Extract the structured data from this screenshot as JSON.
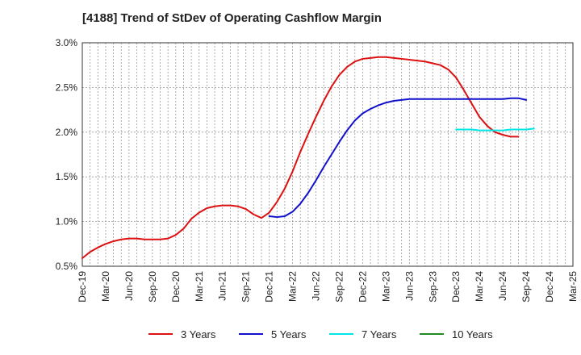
{
  "chart_data": {
    "type": "line",
    "title": "[4188]  Trend of StDev of Operating Cashflow Margin",
    "xlabel": "",
    "ylabel": "",
    "ylim": [
      0.5,
      3.0
    ],
    "y_ticks": [
      "0.5%",
      "1.0%",
      "1.5%",
      "2.0%",
      "2.5%",
      "3.0%"
    ],
    "y_tick_values": [
      0.5,
      1.0,
      1.5,
      2.0,
      2.5,
      3.0
    ],
    "x_ticks": [
      "Dec-19",
      "Mar-20",
      "Jun-20",
      "Sep-20",
      "Dec-20",
      "Mar-21",
      "Jun-21",
      "Sep-21",
      "Dec-21",
      "Mar-22",
      "Jun-22",
      "Sep-22",
      "Dec-22",
      "Mar-23",
      "Jun-23",
      "Sep-23",
      "Dec-23",
      "Mar-24",
      "Jun-24",
      "Sep-24",
      "Dec-24",
      "Mar-25"
    ],
    "grid": true,
    "legend_position": "bottom",
    "series": [
      {
        "name": "3 Years",
        "color": "#dd1111",
        "start_index": 0,
        "values": [
          0.59,
          0.66,
          0.71,
          0.75,
          0.78,
          0.8,
          0.81,
          0.81,
          0.8,
          0.8,
          0.8,
          0.81,
          0.85,
          0.92,
          1.03,
          1.1,
          1.15,
          1.17,
          1.18,
          1.18,
          1.17,
          1.14,
          1.08,
          1.04,
          1.1,
          1.22,
          1.37,
          1.56,
          1.78,
          1.98,
          2.17,
          2.35,
          2.51,
          2.64,
          2.73,
          2.79,
          2.82,
          2.83,
          2.84,
          2.84,
          2.83,
          2.82,
          2.81,
          2.8,
          2.79,
          2.77,
          2.75,
          2.7,
          2.61,
          2.47,
          2.32,
          2.17,
          2.07,
          2.0,
          1.97,
          1.95,
          1.95
        ]
      },
      {
        "name": "5 Years",
        "color": "#1111cc",
        "start_index": 24,
        "values": [
          1.06,
          1.05,
          1.06,
          1.11,
          1.2,
          1.32,
          1.46,
          1.61,
          1.75,
          1.89,
          2.02,
          2.13,
          2.21,
          2.26,
          2.3,
          2.33,
          2.35,
          2.36,
          2.37,
          2.37,
          2.37,
          2.37,
          2.37,
          2.37,
          2.37,
          2.37,
          2.37,
          2.37,
          2.37,
          2.37,
          2.37,
          2.38,
          2.38,
          2.36
        ]
      },
      {
        "name": "7 Years",
        "color": "#00e5e5",
        "start_index": 48,
        "values": [
          2.03,
          2.03,
          2.03,
          2.02,
          2.02,
          2.02,
          2.02,
          2.03,
          2.03,
          2.03,
          2.04
        ]
      },
      {
        "name": "10 Years",
        "color": "#228822",
        "start_index": 0,
        "values": []
      }
    ]
  }
}
